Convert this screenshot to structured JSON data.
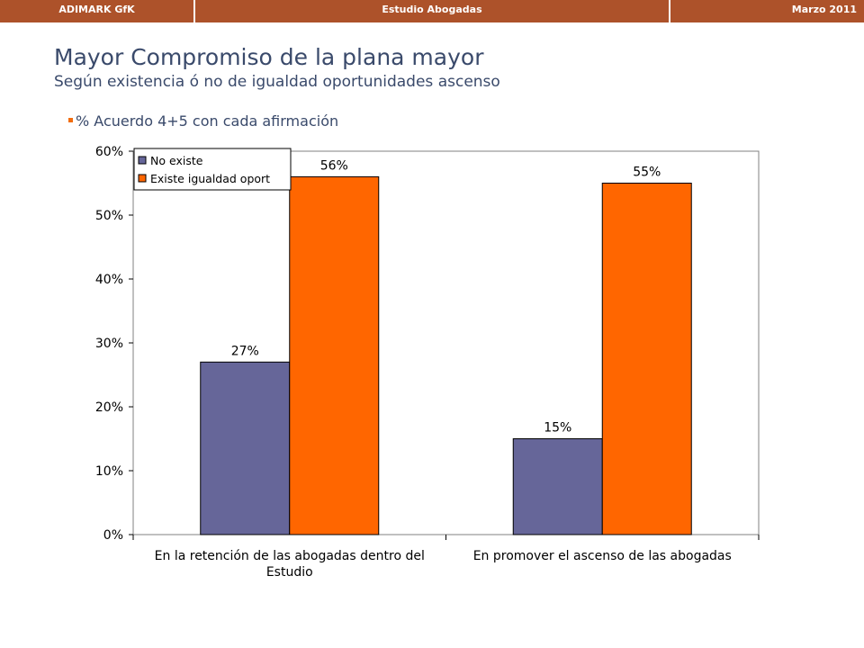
{
  "header": {
    "left": "ADIMARK GfK",
    "center": "Estudio Abogadas",
    "right": "Marzo 2011"
  },
  "slide": {
    "title": "Mayor Compromiso de la plana mayor",
    "subtitle": "Según existencia ó no de igualdad oportunidades ascenso",
    "bullet": "% Acuerdo 4+5 con cada afirmación"
  },
  "colors": {
    "header_bg": "#ad522a",
    "series_no_existe": "#666699",
    "series_existe": "#ff6600"
  },
  "chart_data": {
    "type": "bar",
    "categories": [
      [
        "En la retención de las abogadas dentro del",
        "Estudio"
      ],
      [
        "En promover el ascenso de las abogadas"
      ]
    ],
    "series": [
      {
        "name": "No existe",
        "color": "#666699",
        "values": [
          27,
          15
        ],
        "labels": [
          "27%",
          "15%"
        ]
      },
      {
        "name": "Existe igualdad oport",
        "color": "#ff6600",
        "values": [
          56,
          55
        ],
        "labels": [
          "56%",
          "55%"
        ]
      }
    ],
    "ylim": [
      0,
      60
    ],
    "yticks": [
      "0%",
      "10%",
      "20%",
      "30%",
      "40%",
      "50%",
      "60%"
    ],
    "legend_position": "top-left",
    "grid": false
  }
}
